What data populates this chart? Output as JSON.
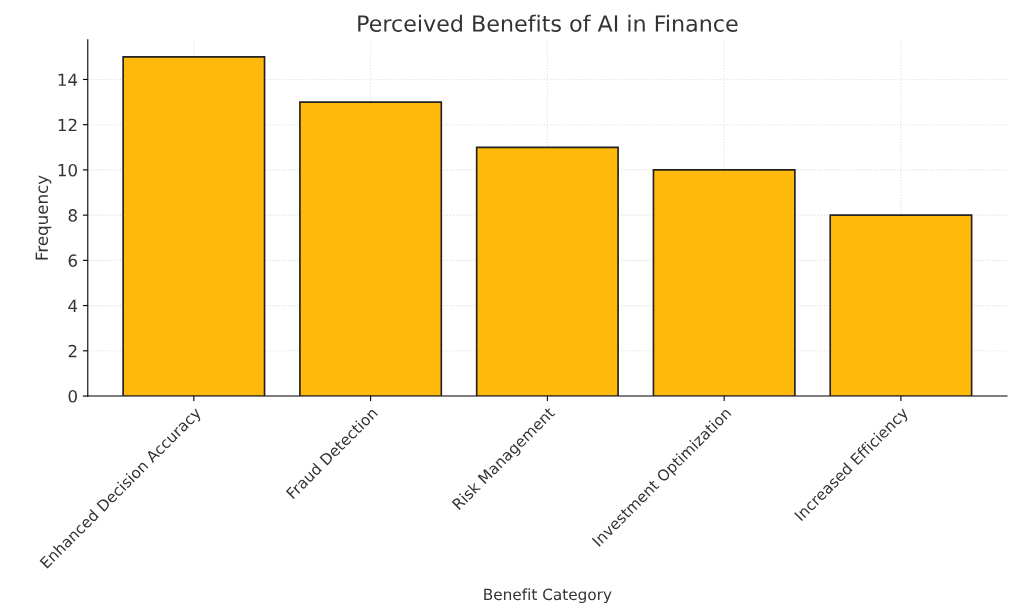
{
  "chart_data": {
    "type": "bar",
    "title": "Perceived Benefits of AI in Finance",
    "xlabel": "Benefit Category",
    "ylabel": "Frequency",
    "categories": [
      "Enhanced Decision Accuracy",
      "Fraud Detection",
      "Risk Management",
      "Investment Optimization",
      "Increased Efficiency"
    ],
    "values": [
      15,
      13,
      11,
      10,
      8
    ],
    "color": "#ffb90a",
    "ylim": [
      0,
      15.75
    ],
    "yticks": [
      0,
      2,
      4,
      6,
      8,
      10,
      12,
      14
    ],
    "grid": true
  }
}
